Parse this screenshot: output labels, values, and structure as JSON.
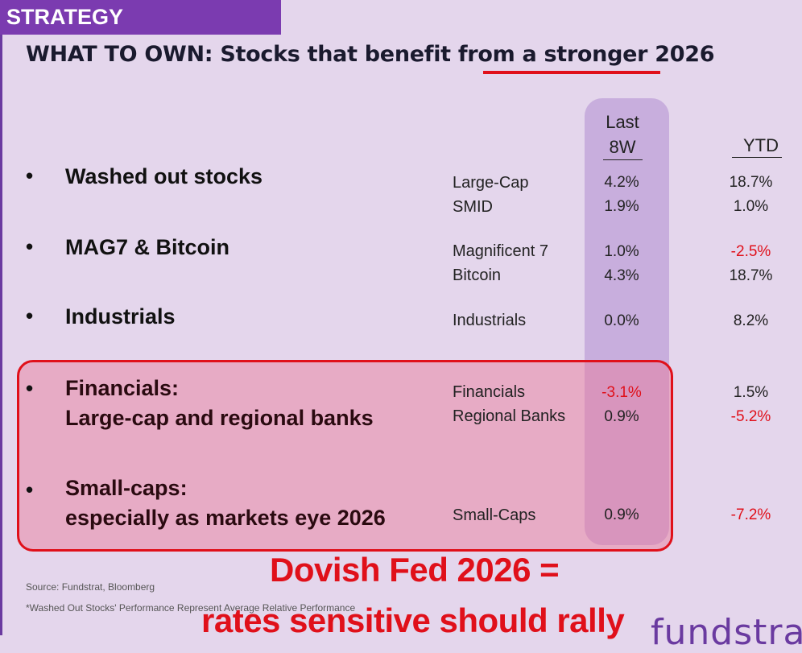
{
  "header": {
    "tag": "STRATEGY"
  },
  "headline": {
    "lead": "WHAT TO OWN: Stocks that benefit from ",
    "emphasis": "a stronger 2026"
  },
  "columns": {
    "last8w_line1": "Last",
    "last8w_line2": "8W",
    "ytd": "YTD"
  },
  "bullet_glyph": "•",
  "categories": [
    {
      "line1": "Washed out stocks"
    },
    {
      "line1": "MAG7 & Bitcoin"
    },
    {
      "line1": "Industrials"
    },
    {
      "line1": "Financials:",
      "line2": "Large-cap and regional banks"
    },
    {
      "line1": "Small-caps:",
      "line2": "especially as markets eye 2026"
    }
  ],
  "rows": [
    {
      "label": "Large-Cap",
      "last8w": "4.2%",
      "ytd": "18.7%"
    },
    {
      "label": "SMID",
      "last8w": "1.9%",
      "ytd": "1.0%"
    },
    {
      "label": "Magnificent 7",
      "last8w": "1.0%",
      "ytd": "-2.5%"
    },
    {
      "label": "Bitcoin",
      "last8w": "4.3%",
      "ytd": "18.7%"
    },
    {
      "label": "Industrials",
      "last8w": "0.0%",
      "ytd": "8.2%"
    },
    {
      "label": "Financials",
      "last8w": "-3.1%",
      "ytd": "1.5%"
    },
    {
      "label": "Regional Banks",
      "last8w": "0.9%",
      "ytd": "-5.2%"
    },
    {
      "label": "Small-Caps",
      "last8w": "0.9%",
      "ytd": "-7.2%"
    }
  ],
  "footer": {
    "source": "Source: Fundstrat, Bloomberg",
    "note": "*Washed Out Stocks' Performance Represent Average Relative Performance"
  },
  "callout": {
    "line1": "Dovish Fed 2026 =",
    "line2": "rates sensitive should rally"
  },
  "logo": "fundstrat",
  "colors": {
    "accent_purple": "#7b3bb0",
    "negative_red": "#e0101a",
    "band": "#c8aedd",
    "background": "#e4d6ec"
  }
}
